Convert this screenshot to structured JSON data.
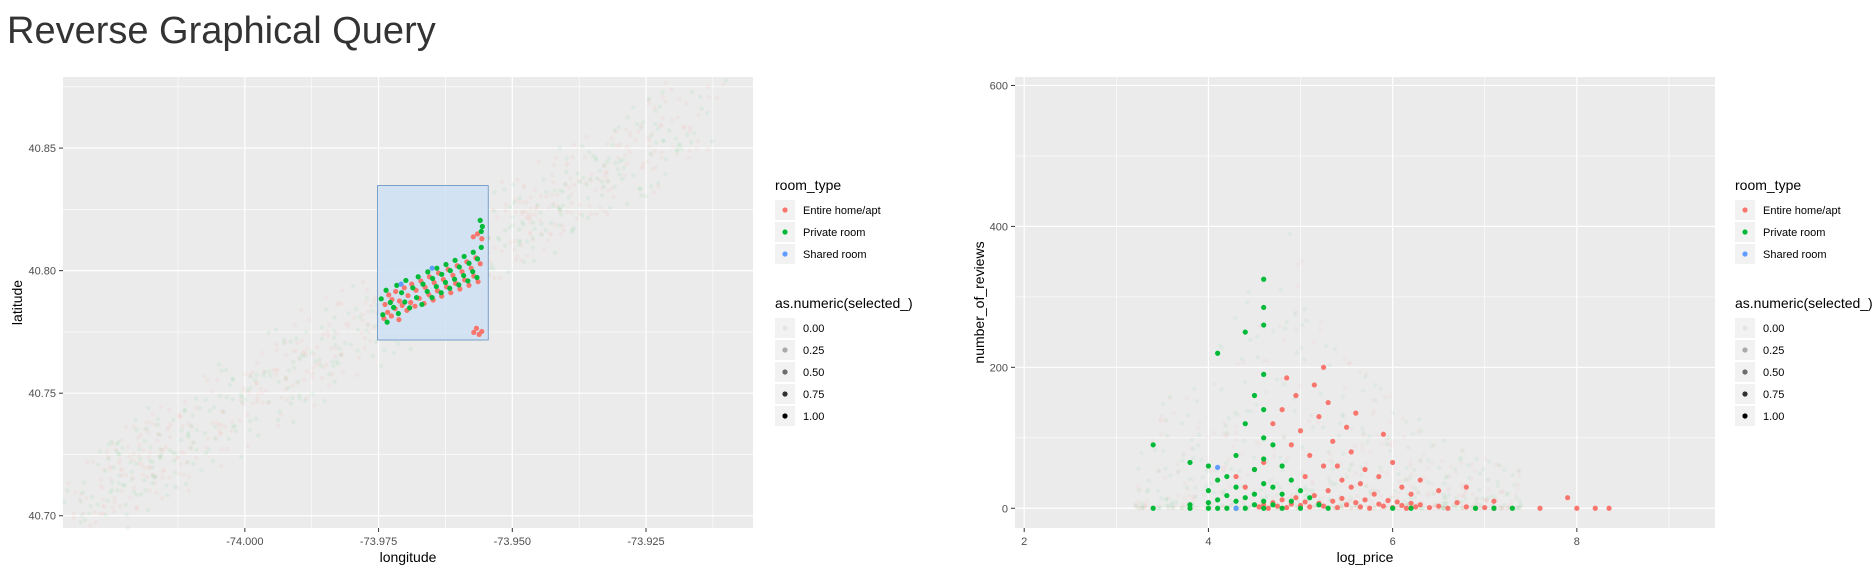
{
  "page": {
    "title": "Reverse Graphical Query"
  },
  "colors": {
    "entire": "#F8766D",
    "private": "#00BA38",
    "shared": "#619CFF",
    "panel": "#EBEBEB",
    "grid": "#FFFFFF",
    "selection_fill": "#CFE0F5",
    "selection_stroke": "#5F8FBF"
  },
  "chart_data": [
    {
      "type": "scatter",
      "title": "",
      "xlabel": "longitude",
      "ylabel": "latitude",
      "xlim": [
        -74.034,
        -73.905
      ],
      "ylim": [
        40.695,
        40.879
      ],
      "x_ticks": [
        -74.0,
        -73.975,
        -73.95,
        -73.925
      ],
      "x_tick_labels": [
        "-74.000",
        "-73.975",
        "-73.950",
        "-73.925"
      ],
      "y_ticks": [
        40.7,
        40.75,
        40.8,
        40.85
      ],
      "y_tick_labels": [
        "40.70",
        "40.75",
        "40.80",
        "40.85"
      ],
      "grid": true,
      "selection_box": {
        "x": [
          -73.9752,
          -73.9545
        ],
        "y": [
          40.7717,
          40.8347
        ]
      },
      "series": [
        {
          "name": "Entire home/apt",
          "points": [
            [
              -73.9738,
              40.7862
            ],
            [
              -73.9731,
              40.7901
            ],
            [
              -73.9725,
              40.7882
            ],
            [
              -73.9718,
              40.7915
            ],
            [
              -73.9711,
              40.7876
            ],
            [
              -73.9702,
              40.793
            ],
            [
              -73.9695,
              40.7898
            ],
            [
              -73.9688,
              40.7945
            ],
            [
              -73.968,
              40.792
            ],
            [
              -73.9671,
              40.7958
            ],
            [
              -73.9663,
              40.7932
            ],
            [
              -73.9655,
              40.7975
            ],
            [
              -73.9646,
              40.7951
            ],
            [
              -73.9638,
              40.799
            ],
            [
              -73.9629,
              40.7964
            ],
            [
              -73.962,
              40.8005
            ],
            [
              -73.9611,
              40.7981
            ],
            [
              -73.9603,
              40.802
            ],
            [
              -73.9594,
              40.7996
            ],
            [
              -73.9585,
              40.8036
            ],
            [
              -73.9577,
              40.801
            ],
            [
              -73.9568,
              40.8052
            ],
            [
              -73.956,
              40.8028
            ],
            [
              -73.974,
              40.7805
            ],
            [
              -73.9733,
              40.783
            ],
            [
              -73.9726,
              40.7815
            ],
            [
              -73.9719,
              40.7845
            ],
            [
              -73.9712,
              40.78
            ],
            [
              -73.9706,
              40.7858
            ],
            [
              -73.9697,
              40.7838
            ],
            [
              -73.969,
              40.787
            ],
            [
              -73.9682,
              40.7855
            ],
            [
              -73.9674,
              40.7887
            ],
            [
              -73.9665,
              40.7866
            ],
            [
              -73.9656,
              40.7902
            ],
            [
              -73.9648,
              40.788
            ],
            [
              -73.964,
              40.7918
            ],
            [
              -73.9632,
              40.7896
            ],
            [
              -73.9623,
              40.7934
            ],
            [
              -73.9615,
              40.791
            ],
            [
              -73.9606,
              40.7948
            ],
            [
              -73.9598,
              40.7925
            ],
            [
              -73.9589,
              40.7962
            ],
            [
              -73.9581,
              40.794
            ],
            [
              -73.9572,
              40.7978
            ],
            [
              -73.9564,
              40.7955
            ],
            [
              -73.9557,
              40.7752
            ],
            [
              -73.9562,
              40.774
            ],
            [
              -73.9567,
              40.7765
            ],
            [
              -73.9572,
              40.7748
            ],
            [
              -73.9557,
              40.813
            ],
            [
              -73.9565,
              40.815
            ],
            [
              -73.9573,
              40.8138
            ]
          ]
        },
        {
          "name": "Private room",
          "points": [
            [
              -73.9745,
              40.7885
            ],
            [
              -73.9736,
              40.792
            ],
            [
              -73.9728,
              40.787
            ],
            [
              -73.9716,
              40.794
            ],
            [
              -73.9707,
              40.791
            ],
            [
              -73.9699,
              40.796
            ],
            [
              -73.9686,
              40.793
            ],
            [
              -73.9676,
              40.7975
            ],
            [
              -73.9667,
              40.7945
            ],
            [
              -73.9658,
              40.7995
            ],
            [
              -73.9649,
              40.7968
            ],
            [
              -73.9641,
              40.801
            ],
            [
              -73.9632,
              40.7985
            ],
            [
              -73.9624,
              40.8025
            ],
            [
              -73.9616,
              40.8
            ],
            [
              -73.9607,
              40.8042
            ],
            [
              -73.9599,
              40.8015
            ],
            [
              -73.959,
              40.8058
            ],
            [
              -73.9581,
              40.803
            ],
            [
              -73.9573,
              40.8075
            ],
            [
              -73.9565,
              40.8048
            ],
            [
              -73.9558,
              40.8095
            ],
            [
              -73.9556,
              40.818
            ],
            [
              -73.956,
              40.8205
            ],
            [
              -73.9558,
              40.816
            ],
            [
              -73.9742,
              40.782
            ],
            [
              -73.9734,
              40.779
            ],
            [
              -73.9722,
              40.785
            ],
            [
              -73.9713,
              40.7825
            ],
            [
              -73.9701,
              40.7872
            ],
            [
              -73.9692,
              40.7848
            ],
            [
              -73.9679,
              40.789
            ],
            [
              -73.9669,
              40.7862
            ],
            [
              -73.9659,
              40.7915
            ],
            [
              -73.965,
              40.789
            ],
            [
              -73.9642,
              40.7935
            ],
            [
              -73.9633,
              40.791
            ],
            [
              -73.9625,
              40.7952
            ],
            [
              -73.9617,
              40.7928
            ],
            [
              -73.9608,
              40.7965
            ],
            [
              -73.96,
              40.7942
            ],
            [
              -73.9591,
              40.798
            ],
            [
              -73.9583,
              40.7958
            ],
            [
              -73.9574,
              40.7996
            ],
            [
              -73.9566,
              40.7972
            ]
          ]
        },
        {
          "name": "Shared room",
          "points": [
            [
              -73.9708,
              40.7945
            ],
            [
              -73.965,
              40.801
            ]
          ]
        }
      ]
    },
    {
      "type": "scatter",
      "title": "",
      "xlabel": "log_price",
      "ylabel": "number_of_reviews",
      "xlim": [
        1.9,
        9.5
      ],
      "ylim": [
        -28,
        612
      ],
      "x_ticks": [
        2,
        4,
        6,
        8
      ],
      "x_tick_labels": [
        "2",
        "4",
        "6",
        "8"
      ],
      "y_ticks": [
        0,
        200,
        400,
        600
      ],
      "y_tick_labels": [
        "0",
        "200",
        "400",
        "600"
      ],
      "grid": true,
      "series": [
        {
          "name": "Entire home/apt",
          "points": [
            [
              4.55,
              2
            ],
            [
              4.6,
              5
            ],
            [
              4.65,
              0
            ],
            [
              4.7,
              8
            ],
            [
              4.75,
              3
            ],
            [
              4.8,
              12
            ],
            [
              4.85,
              1
            ],
            [
              4.9,
              6
            ],
            [
              4.95,
              15
            ],
            [
              5.0,
              4
            ],
            [
              5.05,
              9
            ],
            [
              5.1,
              2
            ],
            [
              5.15,
              18
            ],
            [
              5.2,
              7
            ],
            [
              5.25,
              3
            ],
            [
              5.3,
              25
            ],
            [
              5.35,
              10
            ],
            [
              5.4,
              1
            ],
            [
              5.45,
              14
            ],
            [
              5.5,
              5
            ],
            [
              5.55,
              30
            ],
            [
              5.6,
              8
            ],
            [
              5.65,
              2
            ],
            [
              5.7,
              12
            ],
            [
              5.75,
              0
            ],
            [
              5.8,
              20
            ],
            [
              5.85,
              6
            ],
            [
              5.9,
              3
            ],
            [
              5.95,
              11
            ],
            [
              6.0,
              1
            ],
            [
              6.05,
              9
            ],
            [
              6.1,
              4
            ],
            [
              6.15,
              0
            ],
            [
              6.2,
              7
            ],
            [
              6.25,
              2
            ],
            [
              6.3,
              5
            ],
            [
              6.4,
              1
            ],
            [
              6.5,
              3
            ],
            [
              6.6,
              0
            ],
            [
              6.7,
              8
            ],
            [
              6.8,
              2
            ],
            [
              6.9,
              0
            ],
            [
              7.0,
              1
            ],
            [
              7.1,
              0
            ],
            [
              7.6,
              0
            ],
            [
              7.9,
              15
            ],
            [
              8.0,
              0
            ],
            [
              8.2,
              0
            ],
            [
              8.35,
              0
            ],
            [
              4.7,
              120
            ],
            [
              4.8,
              140
            ],
            [
              4.9,
              90
            ],
            [
              4.95,
              160
            ],
            [
              5.0,
              110
            ],
            [
              5.1,
              75
            ],
            [
              5.15,
              175
            ],
            [
              5.2,
              130
            ],
            [
              5.3,
              150
            ],
            [
              5.35,
              95
            ],
            [
              5.4,
              60
            ],
            [
              5.5,
              115
            ],
            [
              5.55,
              80
            ],
            [
              5.6,
              135
            ],
            [
              5.7,
              55
            ],
            [
              5.9,
              105
            ],
            [
              6.0,
              65
            ],
            [
              6.3,
              40
            ],
            [
              4.3,
              45
            ],
            [
              4.4,
              30
            ],
            [
              4.5,
              55
            ],
            [
              5.05,
              45
            ],
            [
              5.25,
              60
            ],
            [
              5.45,
              40
            ],
            [
              5.65,
              35
            ],
            [
              5.85,
              45
            ],
            [
              6.1,
              30
            ],
            [
              6.2,
              20
            ],
            [
              6.5,
              25
            ],
            [
              6.8,
              30
            ],
            [
              7.1,
              10
            ],
            [
              4.85,
              185
            ],
            [
              5.25,
              200
            ],
            [
              4.6,
              65
            ]
          ]
        },
        {
          "name": "Private room",
          "points": [
            [
              3.4,
              0
            ],
            [
              3.4,
              90
            ],
            [
              3.8,
              0
            ],
            [
              3.8,
              5
            ],
            [
              3.8,
              65
            ],
            [
              4.0,
              0
            ],
            [
              4.0,
              8
            ],
            [
              4.0,
              25
            ],
            [
              4.0,
              60
            ],
            [
              4.1,
              0
            ],
            [
              4.1,
              12
            ],
            [
              4.1,
              40
            ],
            [
              4.1,
              220
            ],
            [
              4.2,
              0
            ],
            [
              4.2,
              18
            ],
            [
              4.2,
              45
            ],
            [
              4.3,
              0
            ],
            [
              4.3,
              10
            ],
            [
              4.3,
              30
            ],
            [
              4.3,
              75
            ],
            [
              4.4,
              0
            ],
            [
              4.4,
              15
            ],
            [
              4.4,
              120
            ],
            [
              4.4,
              250
            ],
            [
              4.5,
              5
            ],
            [
              4.5,
              20
            ],
            [
              4.5,
              55
            ],
            [
              4.5,
              160
            ],
            [
              4.6,
              0
            ],
            [
              4.6,
              10
            ],
            [
              4.6,
              35
            ],
            [
              4.6,
              70
            ],
            [
              4.6,
              100
            ],
            [
              4.6,
              140
            ],
            [
              4.6,
              190
            ],
            [
              4.6,
              260
            ],
            [
              4.6,
              285
            ],
            [
              4.6,
              325
            ],
            [
              4.7,
              5
            ],
            [
              4.7,
              30
            ],
            [
              4.7,
              90
            ],
            [
              4.8,
              0
            ],
            [
              4.8,
              20
            ],
            [
              4.8,
              60
            ],
            [
              4.9,
              10
            ],
            [
              4.9,
              40
            ],
            [
              5.0,
              0
            ],
            [
              5.0,
              25
            ],
            [
              5.1,
              15
            ],
            [
              5.2,
              5
            ],
            [
              5.3,
              0
            ],
            [
              6.0,
              0
            ],
            [
              6.2,
              0
            ],
            [
              6.9,
              0
            ],
            [
              7.1,
              0
            ],
            [
              7.3,
              0
            ]
          ]
        },
        {
          "name": "Shared room",
          "points": [
            [
              4.1,
              58
            ],
            [
              4.3,
              0
            ]
          ]
        }
      ]
    }
  ],
  "legends": [
    {
      "color_title": "room_type",
      "color_items": [
        "Entire home/apt",
        "Private room",
        "Shared room"
      ],
      "alpha_title": "as.numeric(selected_)",
      "alpha_items": [
        "0.00",
        "0.25",
        "0.50",
        "0.75",
        "1.00"
      ]
    },
    {
      "color_title": "room_type",
      "color_items": [
        "Entire home/apt",
        "Private room",
        "Shared room"
      ],
      "alpha_title": "as.numeric(selected_)",
      "alpha_items": [
        "0.00",
        "0.25",
        "0.50",
        "0.75",
        "1.00"
      ]
    }
  ]
}
